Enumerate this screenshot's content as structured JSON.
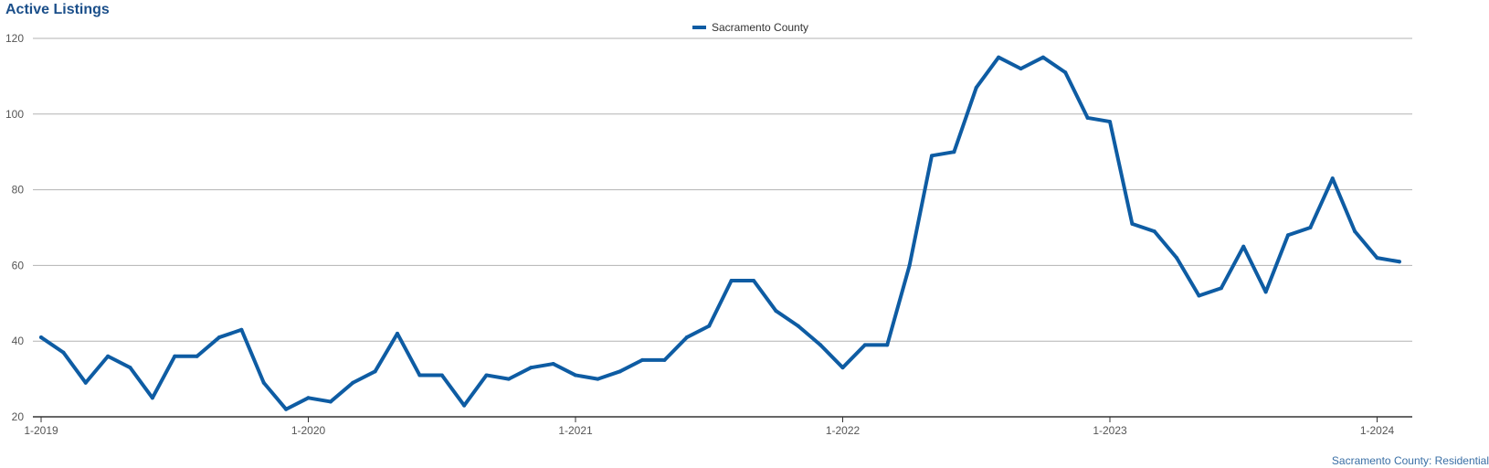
{
  "title": "Active Listings",
  "footnote": "Sacramento County: Residential",
  "colors": {
    "series": "#0e5ca3",
    "grid": "#b3b3b3",
    "axis": "#333333",
    "title": "#1b4f8a"
  },
  "chart_data": {
    "type": "line",
    "title": "Active Listings",
    "xlabel": "",
    "ylabel": "",
    "ylim": [
      20,
      120
    ],
    "yticks": [
      20,
      40,
      60,
      80,
      100,
      120
    ],
    "xticks": [
      "1-2019",
      "1-2020",
      "1-2021",
      "1-2022",
      "1-2023",
      "1-2024"
    ],
    "grid": true,
    "legend_position": "top-center",
    "x_start": "1-2019",
    "x_interval": "month",
    "series": [
      {
        "name": "Sacramento County",
        "color": "#0e5ca3",
        "values": [
          41,
          37,
          29,
          36,
          33,
          25,
          36,
          36,
          41,
          43,
          29,
          22,
          25,
          24,
          29,
          32,
          42,
          31,
          31,
          23,
          31,
          30,
          33,
          34,
          31,
          30,
          32,
          35,
          35,
          41,
          44,
          56,
          56,
          48,
          44,
          39,
          33,
          39,
          39,
          60,
          89,
          90,
          107,
          115,
          112,
          115,
          111,
          99,
          98,
          71,
          69,
          62,
          52,
          54,
          65,
          53,
          68,
          70,
          83,
          69,
          62,
          61
        ]
      }
    ]
  }
}
